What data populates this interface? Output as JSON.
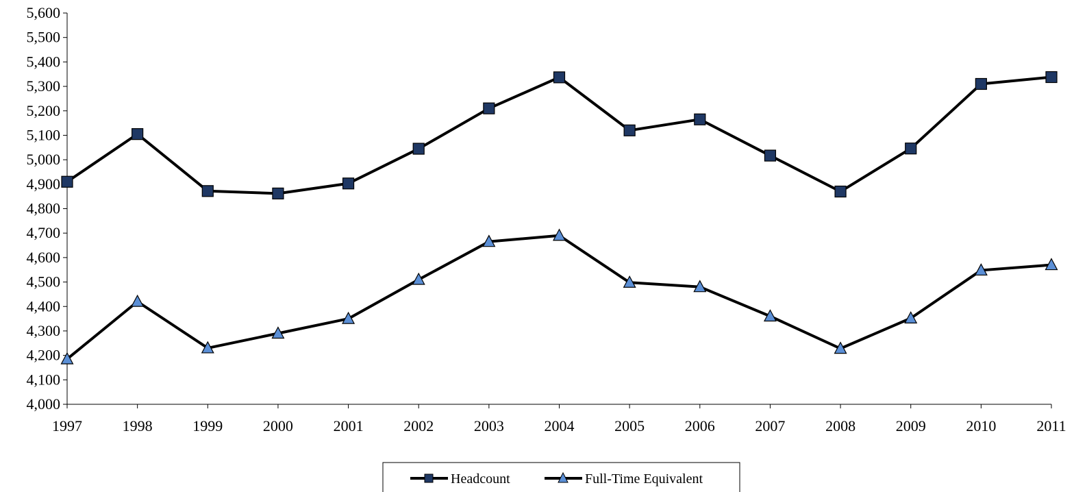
{
  "chart_data": {
    "type": "line",
    "x": [
      "1997",
      "1998",
      "1999",
      "2000",
      "2001",
      "2002",
      "2003",
      "2004",
      "2005",
      "2006",
      "2007",
      "2008",
      "2009",
      "2010",
      "2011"
    ],
    "ylim": [
      4000,
      5600
    ],
    "yticks": [
      4000,
      4100,
      4200,
      4300,
      4400,
      4500,
      4600,
      4700,
      4800,
      4900,
      5000,
      5100,
      5200,
      5300,
      5400,
      5500,
      5600
    ],
    "ytick_labels": [
      "4,000",
      "4,100",
      "4,200",
      "4,300",
      "4,400",
      "4,500",
      "4,600",
      "4,700",
      "4,800",
      "4,900",
      "5,000",
      "5,100",
      "5,200",
      "5,300",
      "5,400",
      "5,500",
      "5,600"
    ],
    "grid": false,
    "legend_position": "bottom",
    "series": [
      {
        "name": "Headcount",
        "marker": "square",
        "line_color": "#000000",
        "marker_color": "#1f3864",
        "values": [
          4910,
          5105,
          4872,
          4862,
          4903,
          5045,
          5210,
          5337,
          5120,
          5165,
          5017,
          4870,
          5046,
          5310,
          5338
        ]
      },
      {
        "name": "Full-Time Equivalent",
        "marker": "triangle",
        "line_color": "#000000",
        "marker_color": "#5b8fd6",
        "values": [
          4185,
          4420,
          4230,
          4290,
          4350,
          4510,
          4665,
          4690,
          4498,
          4480,
          4360,
          4228,
          4352,
          4548,
          4570
        ]
      }
    ]
  }
}
